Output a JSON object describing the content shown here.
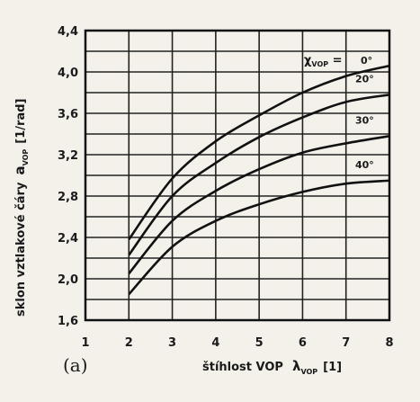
{
  "chart_data": {
    "type": "line",
    "panel_label": "(a)",
    "xlabel": "štíhlost VOP",
    "xlabel_symbol": "λ",
    "xlabel_subscript": "VOP",
    "xlabel_unit": "[1]",
    "ylabel": "sklon vztlakové čáry",
    "ylabel_symbol": "a",
    "ylabel_subscript": "VOP",
    "ylabel_unit": "[1/rad]",
    "xlim": [
      1,
      8
    ],
    "ylim": [
      1.6,
      4.4
    ],
    "x_ticks": [
      "1",
      "2",
      "3",
      "4",
      "5",
      "6",
      "7",
      "8"
    ],
    "y_ticks": [
      "1,6",
      "2,0",
      "2,4",
      "2,8",
      "3,2",
      "3,6",
      "4,0",
      "4,4"
    ],
    "grid": true,
    "series_param_symbol": "χ",
    "series_param_subscript": "VOP",
    "x": [
      2,
      3,
      4,
      5,
      6,
      7,
      8
    ],
    "series": [
      {
        "name": "0°",
        "values": [
          2.38,
          2.97,
          3.33,
          3.58,
          3.8,
          3.96,
          4.06
        ]
      },
      {
        "name": "20°",
        "values": [
          2.23,
          2.8,
          3.12,
          3.37,
          3.56,
          3.71,
          3.78
        ]
      },
      {
        "name": "30°",
        "values": [
          2.05,
          2.56,
          2.85,
          3.06,
          3.22,
          3.31,
          3.38
        ]
      },
      {
        "name": "40°",
        "values": [
          1.85,
          2.31,
          2.56,
          2.72,
          2.84,
          2.92,
          2.95
        ]
      }
    ]
  }
}
